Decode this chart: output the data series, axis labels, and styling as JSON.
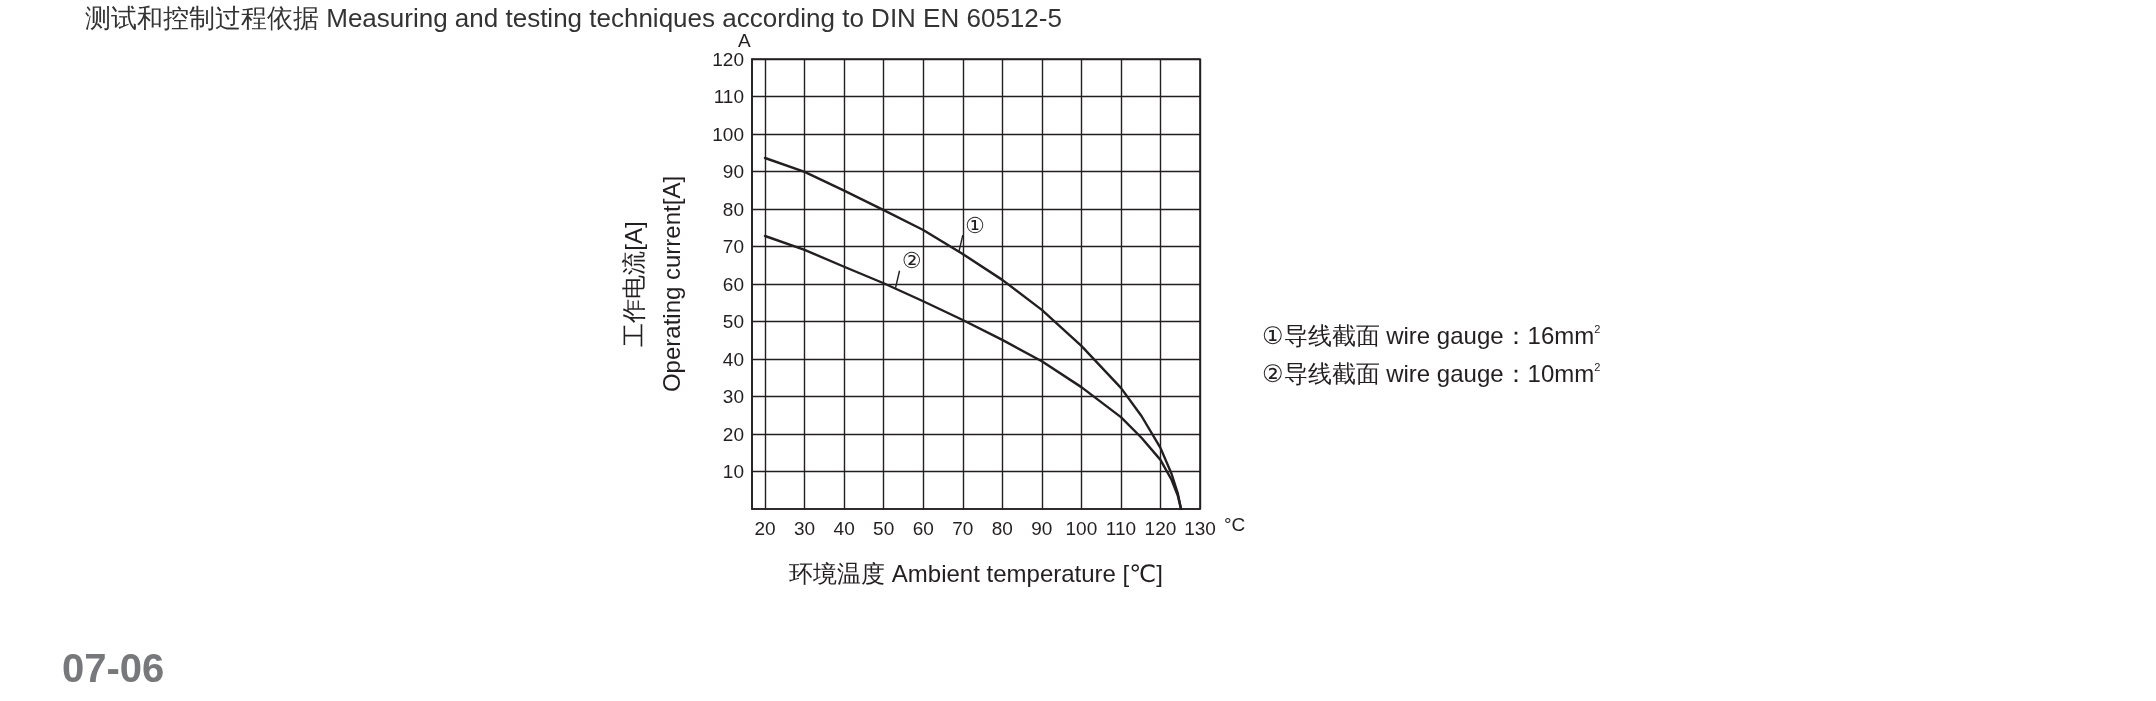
{
  "chart_data": {
    "type": "line",
    "title": "测试和控制过程依据 Measuring and testing techniques according to DIN EN 60512-5",
    "xlabel": "环境温度 Ambient temperature [℃]",
    "ylabel": "工作电流[A]\nOperating current[A]",
    "xlim": [
      16.7,
      130
    ],
    "xticks": [
      20,
      30,
      40,
      50,
      60,
      70,
      80,
      90,
      100,
      110,
      120,
      130
    ],
    "ylim": [
      0,
      120
    ],
    "yticks": [
      10,
      20,
      30,
      40,
      50,
      60,
      70,
      80,
      90,
      100,
      110,
      120
    ],
    "grid": true,
    "legend": "right",
    "marker": "none",
    "line_style": "solid",
    "series": [
      {
        "name": "①导线截面 wire gauge：16mm$^{2}$",
        "color": "#231f20",
        "x": [
          20,
          30,
          40,
          50,
          60,
          70,
          80,
          90,
          100,
          110,
          115.2,
          120,
          122.8,
          124.4,
          125.2
        ],
        "values": [
          93.6,
          89.9,
          84.9,
          79.7,
          74.4,
          68,
          61.1,
          53.1,
          43.5,
          32.3,
          24.8,
          16.3,
          9.4,
          4.1,
          0
        ]
      },
      {
        "name": "②导线截面 wire gauge：10mm$^{2}$",
        "color": "#231f20",
        "x": [
          20,
          30,
          40,
          50,
          60,
          70,
          80,
          90,
          100,
          110,
          115.2,
          120,
          122.8,
          124.4,
          125.2
        ],
        "values": [
          72.8,
          69.1,
          64.6,
          60.2,
          55.4,
          50.4,
          45.1,
          39.4,
          32.5,
          24.5,
          19,
          13.1,
          7.8,
          3.5,
          0
        ]
      }
    ],
    "annotations": [
      "A",
      "°C",
      "07-06",
      {
        "text": "①",
        "x": 69,
        "y": 68.5
      },
      {
        "text": "②",
        "x": 53,
        "y": 59
      }
    ]
  }
}
